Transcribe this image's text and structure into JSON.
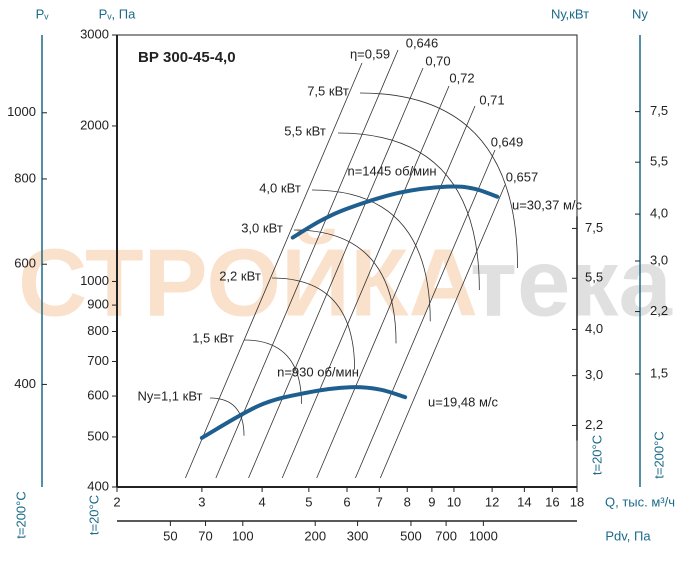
{
  "chart_data": {
    "type": "line",
    "title": "ВР 300-45-4,0",
    "log_x": true,
    "log_y": true,
    "xlabel": "Q, тыс. м³/ч",
    "ylabel": "Pᵥ, Па",
    "ylabel_note": "t=20°C",
    "xlim": [
      2,
      18
    ],
    "xticks": [
      2,
      3,
      4,
      5,
      6,
      7,
      8,
      9,
      10,
      12,
      14,
      16,
      18
    ],
    "ylim": [
      400,
      3000
    ],
    "yticks": [
      400,
      500,
      600,
      700,
      800,
      900,
      1000,
      2000,
      3000
    ],
    "series": [
      {
        "name": "n=1445 об/мин",
        "color": "#1f5f8f",
        "x": [
          4.63,
          5.3,
          6.09,
          7.73,
          9.68,
          11,
          12.3
        ],
        "values": [
          1216,
          1312,
          1390,
          1486,
          1526,
          1512,
          1459
        ]
      },
      {
        "name": "n=930 об/мин",
        "color": "#1f5f8f",
        "x": [
          3.0,
          3.96,
          5.0,
          6.09,
          7.0,
          7.92
        ],
        "values": [
          498,
          576,
          610,
          624,
          618,
          597
        ]
      }
    ],
    "annotations": [
      "η=0,59",
      "0,646",
      "0,70",
      "0,72",
      "0,71",
      "0,649",
      "0,657",
      "7,5 кВт",
      "5,5 кВт",
      "4,0 кВт",
      "3,0 кВт",
      "2,2 кВт",
      "1,5 кВт",
      "Nу=1,1 кВт",
      "u=30,37 м/с",
      "u=19,48 м/с"
    ],
    "secondary_axes": [
      {
        "label": "Pᵥ",
        "note": "t=200°C",
        "side": "left-outer",
        "lim": [
          283,
          1300
        ],
        "ticks": [
          400,
          600,
          800,
          1000
        ]
      },
      {
        "label": "Nу,кВт",
        "note": "t=20°C",
        "side": "right-inner",
        "lim": [
          1.5,
          25
        ],
        "ticks": [
          {
            "value": 2.2,
            "label": "2,2"
          },
          {
            "value": 3.0,
            "label": "3,0"
          },
          {
            "value": 4.0,
            "label": "4,0"
          },
          {
            "value": 5.5,
            "label": "5,5"
          },
          {
            "value": 7.5,
            "label": "7,5"
          }
        ]
      },
      {
        "label": "Nу",
        "note": "t=200°C",
        "side": "right-outer",
        "lim": [
          0.75,
          12
        ],
        "ticks": [
          {
            "value": 1.5,
            "label": "1,5"
          },
          {
            "value": 2.2,
            "label": "2,2"
          },
          {
            "value": 3.0,
            "label": "3,0"
          },
          {
            "value": 4.0,
            "label": "4,0"
          },
          {
            "value": 5.5,
            "label": "5,5"
          },
          {
            "value": 7.5,
            "label": "7,5"
          }
        ]
      },
      {
        "label": "Pdv, Па",
        "side": "bottom",
        "lim": [
          30,
          2450
        ],
        "ticks": [
          50,
          70,
          100,
          200,
          300,
          500,
          700,
          1000
        ]
      }
    ],
    "watermark": [
      "СТРОЙКА",
      "тека"
    ]
  }
}
